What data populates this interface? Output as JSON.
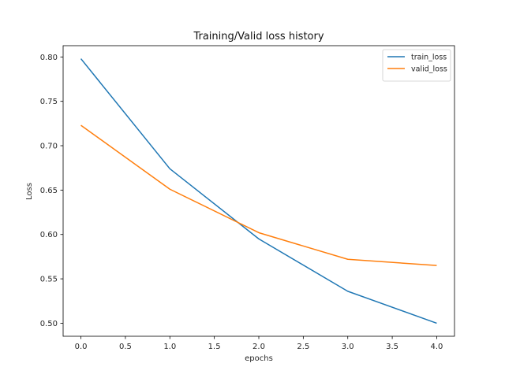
{
  "chart_data": {
    "type": "line",
    "title": "Training/Valid loss history",
    "xlabel": "epochs",
    "ylabel": "Loss",
    "x": [
      0,
      1,
      2,
      3,
      4
    ],
    "series": [
      {
        "name": "train_loss",
        "values": [
          0.798,
          0.674,
          0.595,
          0.536,
          0.5
        ],
        "color": "#1f77b4"
      },
      {
        "name": "valid_loss",
        "values": [
          0.723,
          0.651,
          0.602,
          0.572,
          0.565
        ],
        "color": "#ff7f0e"
      }
    ],
    "xlim": [
      -0.2,
      4.2
    ],
    "ylim": [
      0.4853,
      0.8127
    ],
    "xticks": [
      0,
      0.5,
      1,
      1.5,
      2,
      2.5,
      3,
      3.5,
      4
    ],
    "xtick_labels": [
      "0.0",
      "0.5",
      "1.0",
      "1.5",
      "2.0",
      "2.5",
      "3.0",
      "3.5",
      "4.0"
    ],
    "yticks": [
      0.5,
      0.55,
      0.6,
      0.65,
      0.7,
      0.75,
      0.8
    ],
    "ytick_labels": [
      "0.50",
      "0.55",
      "0.60",
      "0.65",
      "0.70",
      "0.75",
      "0.80"
    ],
    "legend_position": "top-right",
    "grid": false
  }
}
